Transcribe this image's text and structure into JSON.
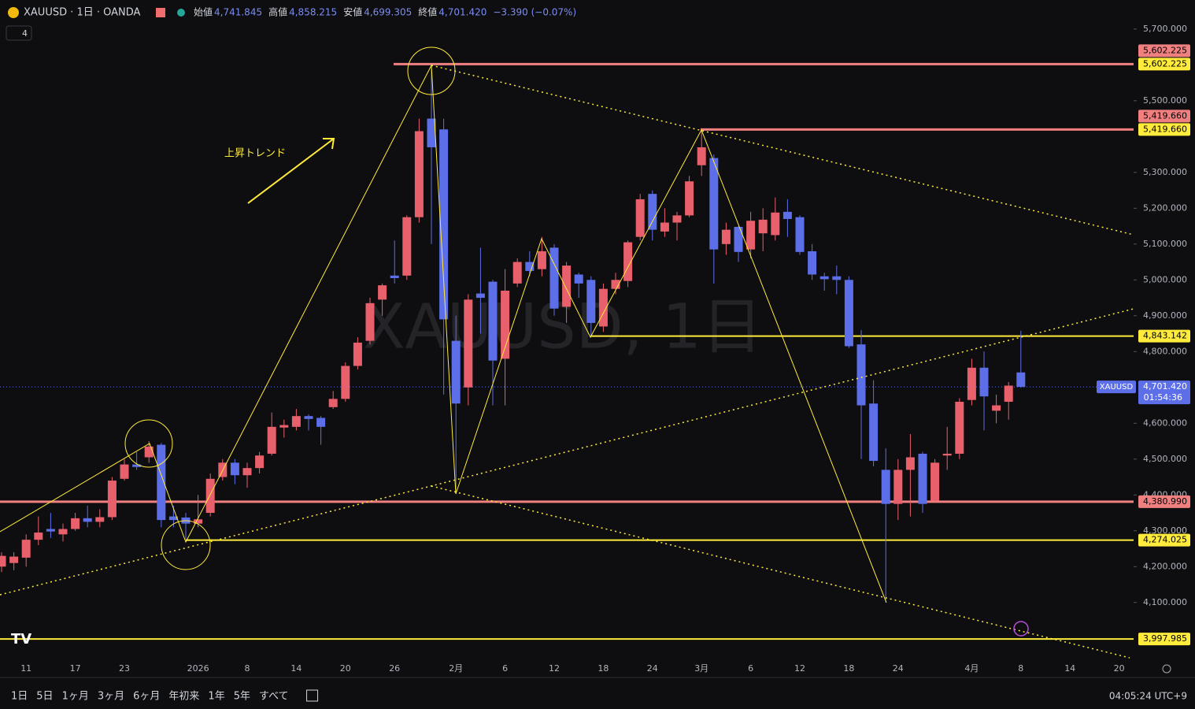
{
  "chart_data": {
    "type": "candlestick",
    "legend": {
      "symbol": "XAUUSD · 1日 · OANDA",
      "ohlc": [
        {
          "label": "始値",
          "value": "4,741.845"
        },
        {
          "label": "高値",
          "value": "4,858.215"
        },
        {
          "label": "安値",
          "value": "4,699.305"
        },
        {
          "label": "終値",
          "value": "4,701.420"
        }
      ],
      "change": "−3.390 (−0.07%)",
      "indicators": "4"
    },
    "watermark": "XAUUSD, 1日",
    "annotation": "上昇トレンド",
    "categories": [
      null,
      null,
      "11",
      null,
      null,
      null,
      "17",
      null,
      null,
      null,
      "23",
      null,
      null,
      null,
      null,
      null,
      "2026",
      null,
      null,
      null,
      "8",
      null,
      null,
      null,
      "14",
      null,
      null,
      null,
      "20",
      null,
      null,
      null,
      "26",
      null,
      null,
      null,
      null,
      "2月",
      null,
      null,
      null,
      "6",
      null,
      null,
      null,
      "12",
      null,
      null,
      null,
      "18",
      null,
      null,
      null,
      "24",
      null,
      null,
      null,
      "3月",
      null,
      null,
      null,
      "6",
      null,
      null,
      null,
      "12",
      null,
      null,
      null,
      "18",
      null,
      null,
      null,
      "24",
      null,
      null,
      null,
      null,
      null,
      "4月",
      null,
      null,
      null,
      "8",
      null,
      null,
      null,
      "14",
      null,
      null,
      null,
      "20"
    ],
    "open": [
      4200,
      4210,
      4225,
      4275,
      4305,
      4290,
      4305,
      4335,
      4325,
      4338,
      4445,
      4485,
      4505,
      4540,
      4340,
      4337,
      4320,
      4350,
      4450,
      4490,
      4455,
      4475,
      4515,
      4588,
      4590,
      4620,
      4615,
      4645,
      4668,
      4760,
      4830,
      4945,
      5012,
      5012,
      5175,
      5450,
      5420,
      4830,
      4700,
      4962,
      4995,
      4780,
      4990,
      5050,
      5030,
      5090,
      4925,
      5015,
      5000,
      4870,
      4975,
      4997,
      5120,
      5240,
      5135,
      5160,
      5180,
      5320,
      5340,
      5100,
      5148,
      5085,
      5130,
      5125,
      5190,
      5175,
      5080,
      5010,
      5010,
      5000,
      4820,
      4655,
      4470,
      4375,
      4470,
      4515,
      4384,
      4510,
      4515,
      4665,
      4755,
      4635,
      4660,
      4741.845,
      null,
      null,
      null,
      null,
      null,
      null,
      null,
      null
    ],
    "high": [
      4240,
      4240,
      4290,
      4340,
      4350,
      4320,
      4350,
      4370,
      4360,
      4450,
      4500,
      4520,
      4550,
      4545,
      4370,
      4350,
      4400,
      4460,
      4500,
      4500,
      4490,
      4520,
      4630,
      4610,
      4640,
      4625,
      4620,
      4690,
      4770,
      4840,
      4950,
      4990,
      5110,
      5180,
      5450,
      5600,
      5450,
      4900,
      4960,
      5090,
      5000,
      5030,
      5060,
      5080,
      5120,
      5100,
      5050,
      5020,
      5010,
      4990,
      5020,
      5110,
      5240,
      5250,
      5200,
      5190,
      5290,
      5420,
      5350,
      5160,
      5150,
      5190,
      5200,
      5230,
      5225,
      5180,
      5100,
      5020,
      5040,
      5010,
      4860,
      4720,
      4530,
      4500,
      4570,
      4520,
      4500,
      4590,
      4670,
      4780,
      4800,
      4680,
      4715,
      4858.215,
      null,
      null,
      null,
      null,
      null,
      null,
      null,
      null
    ],
    "low": [
      4185,
      4190,
      4200,
      4260,
      4280,
      4270,
      4300,
      4310,
      4310,
      4330,
      4440,
      4470,
      4490,
      4310,
      4310,
      4275,
      4310,
      4340,
      4440,
      4430,
      4420,
      4460,
      4510,
      4560,
      4580,
      4580,
      4540,
      4640,
      4660,
      4750,
      4820,
      4900,
      4990,
      5000,
      5160,
      5100,
      4680,
      4405,
      4650,
      4850,
      4650,
      4650,
      4980,
      5010,
      5010,
      4900,
      4880,
      4950,
      4840,
      4855,
      4960,
      4980,
      5110,
      5110,
      5120,
      5110,
      5175,
      5290,
      4990,
      5070,
      5050,
      5060,
      5080,
      5110,
      5120,
      5070,
      5000,
      4970,
      4960,
      4810,
      4500,
      4480,
      4100,
      4330,
      4340,
      4350,
      4380,
      4470,
      4500,
      4650,
      4580,
      4600,
      4610,
      4699.305,
      null,
      null,
      null,
      null,
      null,
      null,
      null,
      null
    ],
    "close": [
      4230,
      4228,
      4275,
      4295,
      4298,
      4305,
      4335,
      4325,
      4338,
      4440,
      4485,
      4478,
      4535,
      4330,
      4330,
      4320,
      4332,
      4445,
      4490,
      4455,
      4475,
      4510,
      4590,
      4595,
      4620,
      4612,
      4590,
      4668,
      4760,
      4825,
      4935,
      4985,
      5005,
      5175,
      5415,
      5370,
      4890,
      4655,
      4945,
      4950,
      4775,
      4970,
      5050,
      5025,
      5080,
      4920,
      5040,
      4990,
      4880,
      4975,
      5000,
      5105,
      5225,
      5140,
      5160,
      5180,
      5275,
      5370,
      5085,
      5140,
      5078,
      5165,
      5168,
      5188,
      5170,
      5078,
      5015,
      5002,
      5000,
      4815,
      4650,
      4495,
      4375,
      4470,
      4505,
      4375,
      4490,
      4515,
      4660,
      4755,
      4675,
      4650,
      4705,
      4701.42,
      null,
      null,
      null,
      null,
      null,
      null,
      null,
      null
    ],
    "up_color": "#e8606c",
    "down_color": "#5d6fe8",
    "ylim": [
      3939,
      5781
    ],
    "yticks": [
      {
        "value": 4100,
        "label": "4,100.000"
      },
      {
        "value": 4200,
        "label": "4,200.000"
      },
      {
        "value": 4300,
        "label": "4,300.000"
      },
      {
        "value": 4400,
        "label": "4,400.000"
      },
      {
        "value": 4500,
        "label": "4,500.000"
      },
      {
        "value": 4600,
        "label": "4,600.000"
      },
      {
        "value": 4800,
        "label": "4,800.000"
      },
      {
        "value": 4900,
        "label": "4,900.000"
      },
      {
        "value": 5000,
        "label": "5,000.000"
      },
      {
        "value": 5100,
        "label": "5,100.000"
      },
      {
        "value": 5200,
        "label": "5,200.000"
      },
      {
        "value": 5300,
        "label": "5,300.000"
      },
      {
        "value": 5500,
        "label": "5,500.000"
      },
      {
        "value": 5700,
        "label": "5,700.000"
      }
    ],
    "price_lines": [
      {
        "value": 5602.225,
        "label": "5,602.225",
        "color": "#f08080"
      },
      {
        "value": 5419.66,
        "label": "5,419.660",
        "color": "#f08080"
      },
      {
        "value": 4843.142,
        "label": "4,843.142",
        "color": "#ffeb3b"
      },
      {
        "value": 4380.99,
        "label": "4,380.990",
        "color": "#f08080"
      },
      {
        "value": 4274.025,
        "label": "4,274.025",
        "color": "#ffeb3b"
      },
      {
        "value": 3997.985,
        "label": "3,997.985",
        "color": "#ffeb3b"
      }
    ],
    "extra_tags": [
      {
        "value": 5602.225,
        "label": "5,602.225",
        "color": "#ffeb3b"
      },
      {
        "value": 5419.66,
        "label": "5,419.660",
        "color": "#ffeb3b"
      }
    ],
    "last_price": {
      "symbol": "XAUUSD",
      "value": 4701.42,
      "label": "4,701.420",
      "countdown": "01:54:36",
      "color": "#5d6fe8"
    },
    "ranges": [
      "1日",
      "5日",
      "1ヶ月",
      "3ヶ月",
      "6ヶ月",
      "年初来",
      "1年",
      "5年",
      "すべて"
    ],
    "clock": "04:05:24 UTC+9"
  }
}
